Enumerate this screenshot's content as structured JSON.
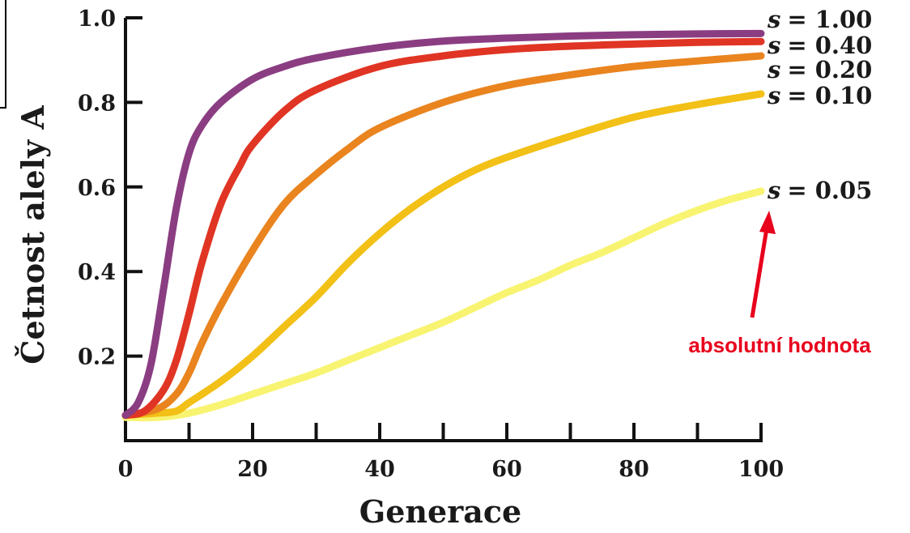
{
  "chart_data": {
    "type": "line",
    "xlabel": "Generace",
    "ylabel": "Četnost alely A",
    "xlim": [
      0,
      100
    ],
    "ylim": [
      0,
      1.0
    ],
    "x_ticks": [
      0,
      20,
      40,
      60,
      80,
      100
    ],
    "y_ticks": [
      0.2,
      0.4,
      0.6,
      0.8,
      1.0
    ],
    "x_minor_step": 10,
    "grid": false,
    "series": [
      {
        "name": "s = 1.00",
        "color": "#8b3d82",
        "points": [
          [
            0,
            0.06
          ],
          [
            2,
            0.09
          ],
          [
            4,
            0.18
          ],
          [
            6,
            0.36
          ],
          [
            8,
            0.55
          ],
          [
            10,
            0.68
          ],
          [
            12,
            0.745
          ],
          [
            15,
            0.8
          ],
          [
            20,
            0.855
          ],
          [
            25,
            0.885
          ],
          [
            30,
            0.905
          ],
          [
            40,
            0.93
          ],
          [
            50,
            0.945
          ],
          [
            60,
            0.952
          ],
          [
            70,
            0.957
          ],
          [
            80,
            0.96
          ],
          [
            90,
            0.962
          ],
          [
            100,
            0.963
          ]
        ]
      },
      {
        "name": "s = 0.40",
        "color": "#e03524",
        "points": [
          [
            0,
            0.06
          ],
          [
            3,
            0.07
          ],
          [
            6,
            0.12
          ],
          [
            8,
            0.19
          ],
          [
            10,
            0.3
          ],
          [
            12,
            0.42
          ],
          [
            15,
            0.56
          ],
          [
            18,
            0.65
          ],
          [
            20,
            0.7
          ],
          [
            25,
            0.78
          ],
          [
            30,
            0.83
          ],
          [
            40,
            0.885
          ],
          [
            50,
            0.91
          ],
          [
            60,
            0.925
          ],
          [
            70,
            0.933
          ],
          [
            80,
            0.938
          ],
          [
            90,
            0.942
          ],
          [
            100,
            0.944
          ]
        ]
      },
      {
        "name": "s = 0.20",
        "color": "#e9841f",
        "points": [
          [
            0,
            0.06
          ],
          [
            5,
            0.075
          ],
          [
            8,
            0.11
          ],
          [
            10,
            0.16
          ],
          [
            12,
            0.23
          ],
          [
            15,
            0.32
          ],
          [
            20,
            0.45
          ],
          [
            25,
            0.56
          ],
          [
            30,
            0.63
          ],
          [
            35,
            0.69
          ],
          [
            40,
            0.74
          ],
          [
            50,
            0.8
          ],
          [
            60,
            0.84
          ],
          [
            70,
            0.865
          ],
          [
            80,
            0.885
          ],
          [
            90,
            0.898
          ],
          [
            100,
            0.91
          ]
        ]
      },
      {
        "name": "s = 0.10",
        "color": "#f2c016",
        "points": [
          [
            0,
            0.06
          ],
          [
            5,
            0.065
          ],
          [
            8,
            0.07
          ],
          [
            10,
            0.09
          ],
          [
            15,
            0.14
          ],
          [
            20,
            0.2
          ],
          [
            25,
            0.27
          ],
          [
            30,
            0.34
          ],
          [
            35,
            0.42
          ],
          [
            40,
            0.49
          ],
          [
            45,
            0.55
          ],
          [
            50,
            0.6
          ],
          [
            55,
            0.64
          ],
          [
            60,
            0.67
          ],
          [
            70,
            0.72
          ],
          [
            80,
            0.765
          ],
          [
            90,
            0.795
          ],
          [
            100,
            0.82
          ]
        ]
      },
      {
        "name": "s = 0.05",
        "color": "#f8f472",
        "points": [
          [
            0,
            0.055
          ],
          [
            5,
            0.055
          ],
          [
            10,
            0.065
          ],
          [
            15,
            0.085
          ],
          [
            20,
            0.11
          ],
          [
            25,
            0.135
          ],
          [
            30,
            0.16
          ],
          [
            35,
            0.19
          ],
          [
            40,
            0.22
          ],
          [
            45,
            0.25
          ],
          [
            50,
            0.28
          ],
          [
            55,
            0.315
          ],
          [
            60,
            0.35
          ],
          [
            65,
            0.38
          ],
          [
            70,
            0.415
          ],
          [
            75,
            0.445
          ],
          [
            80,
            0.48
          ],
          [
            85,
            0.515
          ],
          [
            90,
            0.545
          ],
          [
            95,
            0.57
          ],
          [
            100,
            0.59
          ]
        ]
      }
    ],
    "series_labels": [
      {
        "prefix": "s",
        "value": "= 1.00"
      },
      {
        "prefix": "s",
        "value": "= 0.40"
      },
      {
        "prefix": "s",
        "value": "= 0.20"
      },
      {
        "prefix": "s",
        "value": "= 0.10"
      },
      {
        "prefix": "s",
        "value": "= 0.05"
      }
    ],
    "annotation": {
      "text": "absolutní hodnota",
      "color": "#e8001c",
      "points_to": "s = 0.05"
    }
  }
}
